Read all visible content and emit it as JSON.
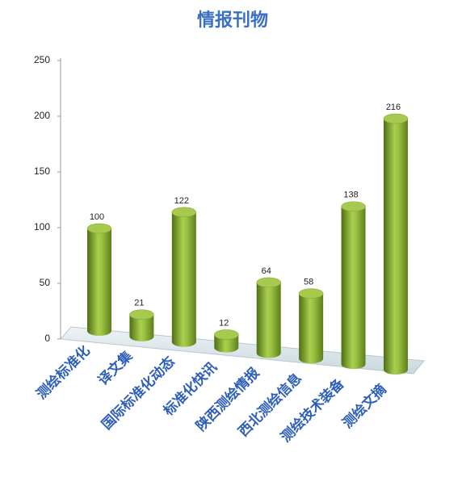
{
  "chart_data": {
    "type": "bar",
    "title": "情报刊物",
    "categories": [
      "测绘标准化",
      "译文集",
      "国际标准化动态",
      "标准化快讯",
      "陕西测绘情报",
      "西北测绘信息",
      "测绘技术装备",
      "测绘文摘"
    ],
    "values": [
      100,
      21,
      122,
      12,
      64,
      58,
      138,
      216
    ],
    "color": "#8fb83a",
    "ylim": [
      0,
      250
    ],
    "yticks": [
      0,
      50,
      100,
      150,
      200,
      250
    ]
  }
}
